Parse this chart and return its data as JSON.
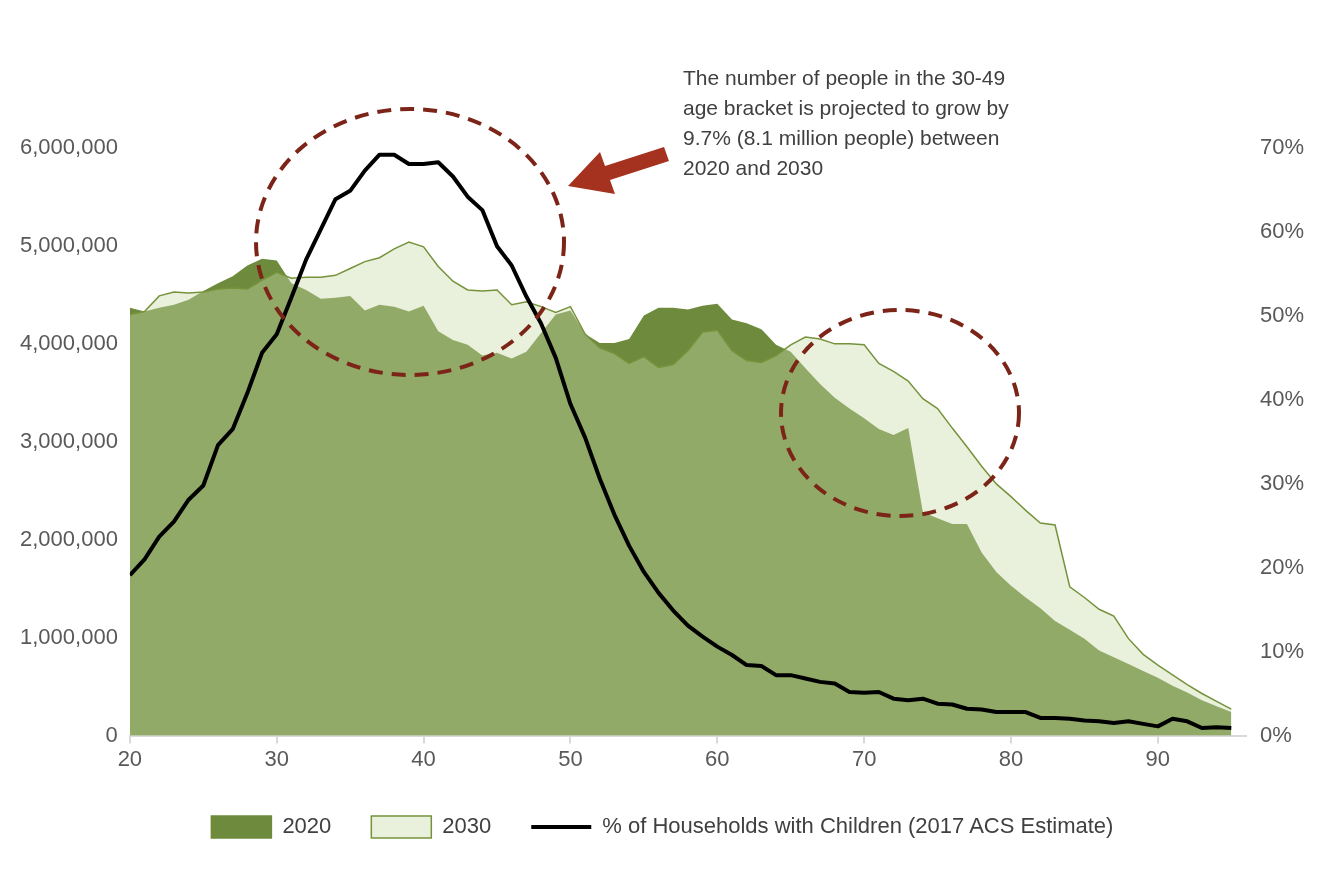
{
  "chart_data": {
    "type": "area",
    "x": [
      20,
      21,
      22,
      23,
      24,
      25,
      26,
      27,
      28,
      29,
      30,
      31,
      32,
      33,
      34,
      35,
      36,
      37,
      38,
      39,
      40,
      41,
      42,
      43,
      44,
      45,
      46,
      47,
      48,
      49,
      50,
      51,
      52,
      53,
      54,
      55,
      56,
      57,
      58,
      59,
      60,
      61,
      62,
      63,
      64,
      65,
      66,
      67,
      68,
      69,
      70,
      71,
      72,
      73,
      74,
      75,
      76,
      77,
      78,
      79,
      80,
      81,
      82,
      83,
      84,
      85,
      86,
      87,
      88,
      89,
      90,
      91,
      92,
      93,
      94,
      95
    ],
    "series": [
      {
        "name": "2020",
        "color": "#6e8b3d",
        "values": [
          4370000,
          4330000,
          4370000,
          4400000,
          4450000,
          4540000,
          4620000,
          4690000,
          4800000,
          4870000,
          4850000,
          4620000,
          4550000,
          4460000,
          4470000,
          4490000,
          4340000,
          4400000,
          4380000,
          4330000,
          4390000,
          4130000,
          4040000,
          3990000,
          3880000,
          3910000,
          3850000,
          3920000,
          4110000,
          4300000,
          4340000,
          4100000,
          4010000,
          4010000,
          4050000,
          4290000,
          4370000,
          4370000,
          4350000,
          4390000,
          4410000,
          4250000,
          4210000,
          4150000,
          3990000,
          3920000,
          3750000,
          3590000,
          3450000,
          3340000,
          3240000,
          3130000,
          3070000,
          3140000,
          2280000,
          2220000,
          2160000,
          2160000,
          1870000,
          1670000,
          1530000,
          1410000,
          1300000,
          1170000,
          1080000,
          990000,
          870000,
          800000,
          730000,
          660000,
          590000,
          510000,
          440000,
          360000,
          300000,
          240000
        ]
      },
      {
        "name": "2030",
        "color": "#c8d9a7",
        "values": [
          4300000,
          4330000,
          4490000,
          4530000,
          4520000,
          4530000,
          4560000,
          4570000,
          4560000,
          4650000,
          4730000,
          4670000,
          4680000,
          4680000,
          4700000,
          4770000,
          4840000,
          4880000,
          4970000,
          5040000,
          4990000,
          4790000,
          4640000,
          4550000,
          4540000,
          4550000,
          4400000,
          4430000,
          4380000,
          4320000,
          4380000,
          4100000,
          3960000,
          3900000,
          3800000,
          3870000,
          3760000,
          3790000,
          3930000,
          4120000,
          4140000,
          3930000,
          3830000,
          3810000,
          3880000,
          3990000,
          4070000,
          4050000,
          4000000,
          4000000,
          3990000,
          3800000,
          3720000,
          3620000,
          3440000,
          3340000,
          3140000,
          2950000,
          2750000,
          2570000,
          2440000,
          2300000,
          2170000,
          2150000,
          1520000,
          1410000,
          1290000,
          1220000,
          990000,
          830000,
          720000,
          620000,
          520000,
          430000,
          350000,
          270000
        ]
      },
      {
        "name": "% of Households with Children (2017 ACS Estimate)",
        "type": "line",
        "axis": "y2",
        "color": "#000000",
        "values": [
          19.1,
          21.0,
          23.7,
          25.5,
          28.1,
          29.8,
          34.6,
          36.5,
          40.8,
          45.6,
          47.8,
          52.2,
          56.7,
          60.3,
          63.9,
          64.9,
          67.3,
          69.2,
          69.2,
          68.1,
          68.1,
          68.3,
          66.6,
          64.2,
          62.6,
          58.3,
          56.0,
          52.3,
          49.1,
          45.0,
          39.5,
          35.5,
          30.6,
          26.3,
          22.6,
          19.5,
          17.0,
          14.9,
          13.1,
          11.8,
          10.6,
          9.6,
          8.4,
          8.3,
          7.2,
          7.2,
          6.8,
          6.4,
          6.2,
          5.2,
          5.1,
          5.2,
          4.4,
          4.2,
          4.4,
          3.8,
          3.7,
          3.2,
          3.1,
          2.8,
          2.8,
          2.8,
          2.1,
          2.1,
          2.0,
          1.8,
          1.7,
          1.5,
          1.7,
          1.4,
          1.1,
          2.0,
          1.7,
          0.9,
          1.0,
          0.9
        ]
      }
    ],
    "xlim": [
      20,
      96
    ],
    "xticks": [
      20,
      30,
      40,
      50,
      60,
      70,
      80,
      90
    ],
    "ylim": [
      0,
      6000000
    ],
    "yticks": [
      {
        "value": 0,
        "label": "0"
      },
      {
        "value": 1000000,
        "label": "1,000,000"
      },
      {
        "value": 2000000,
        "label": "2,000,000"
      },
      {
        "value": 3000000,
        "label": "3,000,000"
      },
      {
        "value": 4000000,
        "label": "4,000,000"
      },
      {
        "value": 5000000,
        "label": "5,000,000"
      },
      {
        "value": 6000000,
        "label": "6,000,000"
      }
    ],
    "y2lim": [
      0,
      70
    ],
    "y2ticks": [
      {
        "value": 0,
        "label": "0%"
      },
      {
        "value": 10,
        "label": "10%"
      },
      {
        "value": 20,
        "label": "20%"
      },
      {
        "value": 30,
        "label": "30%"
      },
      {
        "value": 40,
        "label": "40%"
      },
      {
        "value": 50,
        "label": "50%"
      },
      {
        "value": 60,
        "label": "60%"
      },
      {
        "value": 70,
        "label": "70%"
      }
    ],
    "legend": "bottom",
    "annotations": [
      "The number of people in the 30-49 age bracket is projected to grow by 9.7% (8.1 million people) between 2020 and 2030"
    ]
  }
}
